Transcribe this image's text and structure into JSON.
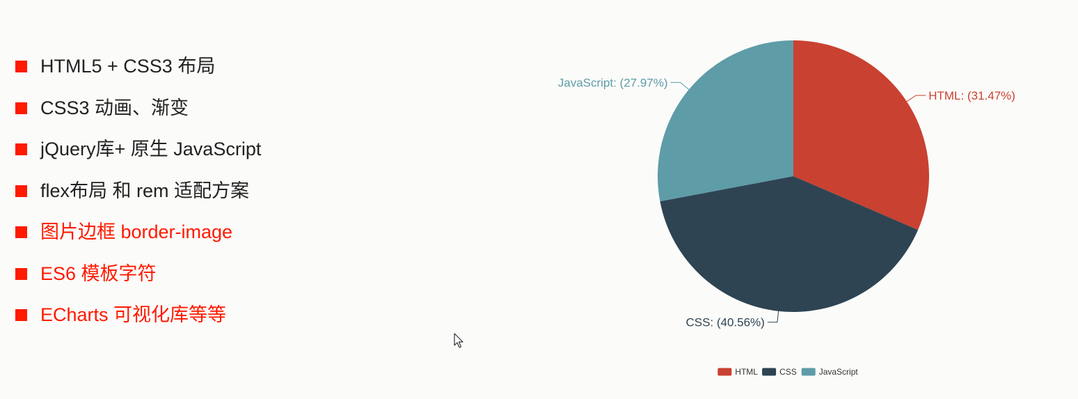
{
  "bullets": [
    {
      "text": "HTML5 + CSS3 布局",
      "style": "dark"
    },
    {
      "text": "CSS3 动画、渐变",
      "style": "dark"
    },
    {
      "text": "jQuery库+ 原生 JavaScript",
      "style": "dark"
    },
    {
      "text": "flex布局 和  rem 适配方案",
      "style": "dark"
    },
    {
      "text": "图片边框 border-image",
      "style": "red"
    },
    {
      "text": "ES6 模板字符",
      "style": "red"
    },
    {
      "text": "ECharts 可视化库等等",
      "style": "red"
    }
  ],
  "colors": {
    "accent_red": "#ff1a00",
    "text_dark": "#222222",
    "background": "#fbfbf9"
  },
  "chart_data": {
    "type": "pie",
    "title": "",
    "slices": [
      {
        "name": "HTML",
        "value": 31.47,
        "label": "HTML: (31.47%)",
        "color": "#c94130"
      },
      {
        "name": "CSS",
        "value": 40.56,
        "label": "CSS: (40.56%)",
        "color": "#2e4453"
      },
      {
        "name": "JavaScript",
        "value": 27.97,
        "label": "JavaScript: (27.97%)",
        "color": "#5e9ca8"
      }
    ],
    "legend": {
      "position": "bottom",
      "items": [
        "HTML",
        "CSS",
        "JavaScript"
      ]
    }
  }
}
